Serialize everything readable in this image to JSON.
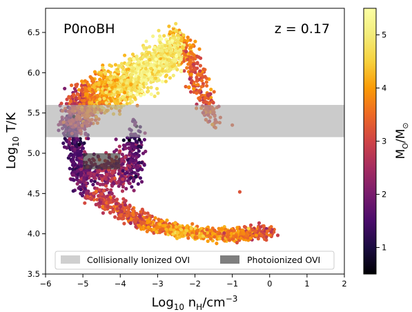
{
  "chart_data": {
    "type": "heatmap",
    "title": "",
    "panel_label": "P0noBH",
    "redshift_label": "z = 0.17",
    "xlabel_main": "Log",
    "xlabel_sub": "10",
    "xlabel_unit": " n",
    "xlabel_unit_sub": "H",
    "xlabel_tail": "/cm",
    "xlabel_sup": "−3",
    "ylabel_main": "Log",
    "ylabel_sub": "10",
    "ylabel_tail": " T/K",
    "xlim": [
      -6,
      2
    ],
    "ylim": [
      3.5,
      6.8
    ],
    "xticks": [
      -6,
      -5,
      -4,
      -3,
      -2,
      -1,
      0,
      1,
      2
    ],
    "xtick_labels": [
      "−6",
      "−5",
      "−4",
      "−3",
      "−2",
      "−1",
      "0",
      "1",
      "2"
    ],
    "yticks": [
      3.5,
      4.0,
      4.5,
      5.0,
      5.5,
      6.0,
      6.5
    ],
    "ytick_labels": [
      "3.5",
      "4.0",
      "4.5",
      "5.0",
      "5.5",
      "6.0",
      "6.5"
    ],
    "colorbar": {
      "label_main": "M",
      "label_sub1": "O",
      "label_mid": "/M",
      "label_sub2": "⊙",
      "range": [
        0.5,
        5.5
      ],
      "ticks": [
        1,
        2,
        3,
        4,
        5
      ],
      "tick_labels": [
        "1",
        "2",
        "3",
        "4",
        "5"
      ],
      "colormap": "inferno"
    },
    "bands": [
      {
        "name": "Collisionally Ionized OVI",
        "x": [
          -6,
          2
        ],
        "y": [
          5.2,
          5.6
        ],
        "color": "#a9a9a9",
        "opacity": 0.6
      },
      {
        "name": "Photoionized OVI",
        "x": [
          -5,
          -4
        ],
        "y": [
          4.8,
          5.0
        ],
        "color": "#3a3a3a",
        "opacity": 0.65
      }
    ],
    "legend": {
      "position": "bottom",
      "entries": [
        "Collisionally Ionized OVI",
        "Photoionized OVI"
      ]
    },
    "distribution": {
      "hot_branch": [
        {
          "x": -5.3,
          "y": 5.3,
          "v": 1.5
        },
        {
          "x": -5.1,
          "y": 5.55,
          "v": 3.0
        },
        {
          "x": -4.8,
          "y": 5.7,
          "v": 3.5
        },
        {
          "x": -4.4,
          "y": 5.75,
          "v": 4.2
        },
        {
          "x": -4.0,
          "y": 5.85,
          "v": 4.5
        },
        {
          "x": -3.6,
          "y": 5.95,
          "v": 4.8
        },
        {
          "x": -3.2,
          "y": 6.05,
          "v": 5.0
        },
        {
          "x": -2.8,
          "y": 6.2,
          "v": 5.0
        },
        {
          "x": -2.5,
          "y": 6.35,
          "v": 4.6
        }
      ],
      "return_branch": [
        {
          "x": -2.4,
          "y": 6.4,
          "v": 3.8
        },
        {
          "x": -2.1,
          "y": 6.1,
          "v": 3.5
        },
        {
          "x": -1.8,
          "y": 5.75,
          "v": 3.3
        },
        {
          "x": -1.5,
          "y": 5.45,
          "v": 3.2
        }
      ],
      "vertical_branch": [
        {
          "x": -5.3,
          "y": 5.4,
          "v": 1.4
        },
        {
          "x": -5.2,
          "y": 5.0,
          "v": 1.5
        },
        {
          "x": -5.1,
          "y": 4.7,
          "v": 1.8
        },
        {
          "x": -4.5,
          "y": 4.75,
          "v": 2.5
        },
        {
          "x": -4.0,
          "y": 4.8,
          "v": 2.5
        },
        {
          "x": -3.6,
          "y": 4.85,
          "v": 1.8
        },
        {
          "x": -3.6,
          "y": 5.2,
          "v": 1.5
        }
      ],
      "cool_branch": [
        {
          "x": -4.7,
          "y": 4.5,
          "v": 2.8
        },
        {
          "x": -4.2,
          "y": 4.35,
          "v": 3.0
        },
        {
          "x": -3.6,
          "y": 4.2,
          "v": 3.3
        },
        {
          "x": -3.0,
          "y": 4.1,
          "v": 3.6
        },
        {
          "x": -2.4,
          "y": 4.03,
          "v": 4.0
        },
        {
          "x": -1.8,
          "y": 4.0,
          "v": 4.2
        },
        {
          "x": -1.2,
          "y": 3.98,
          "v": 3.8
        },
        {
          "x": -0.6,
          "y": 4.0,
          "v": 3.6
        },
        {
          "x": 0.0,
          "y": 4.03,
          "v": 3.2
        }
      ],
      "outliers": [
        {
          "x": -0.8,
          "y": 4.52,
          "v": 3.2
        },
        {
          "x": -1.0,
          "y": 5.35,
          "v": 3.3
        }
      ]
    }
  }
}
